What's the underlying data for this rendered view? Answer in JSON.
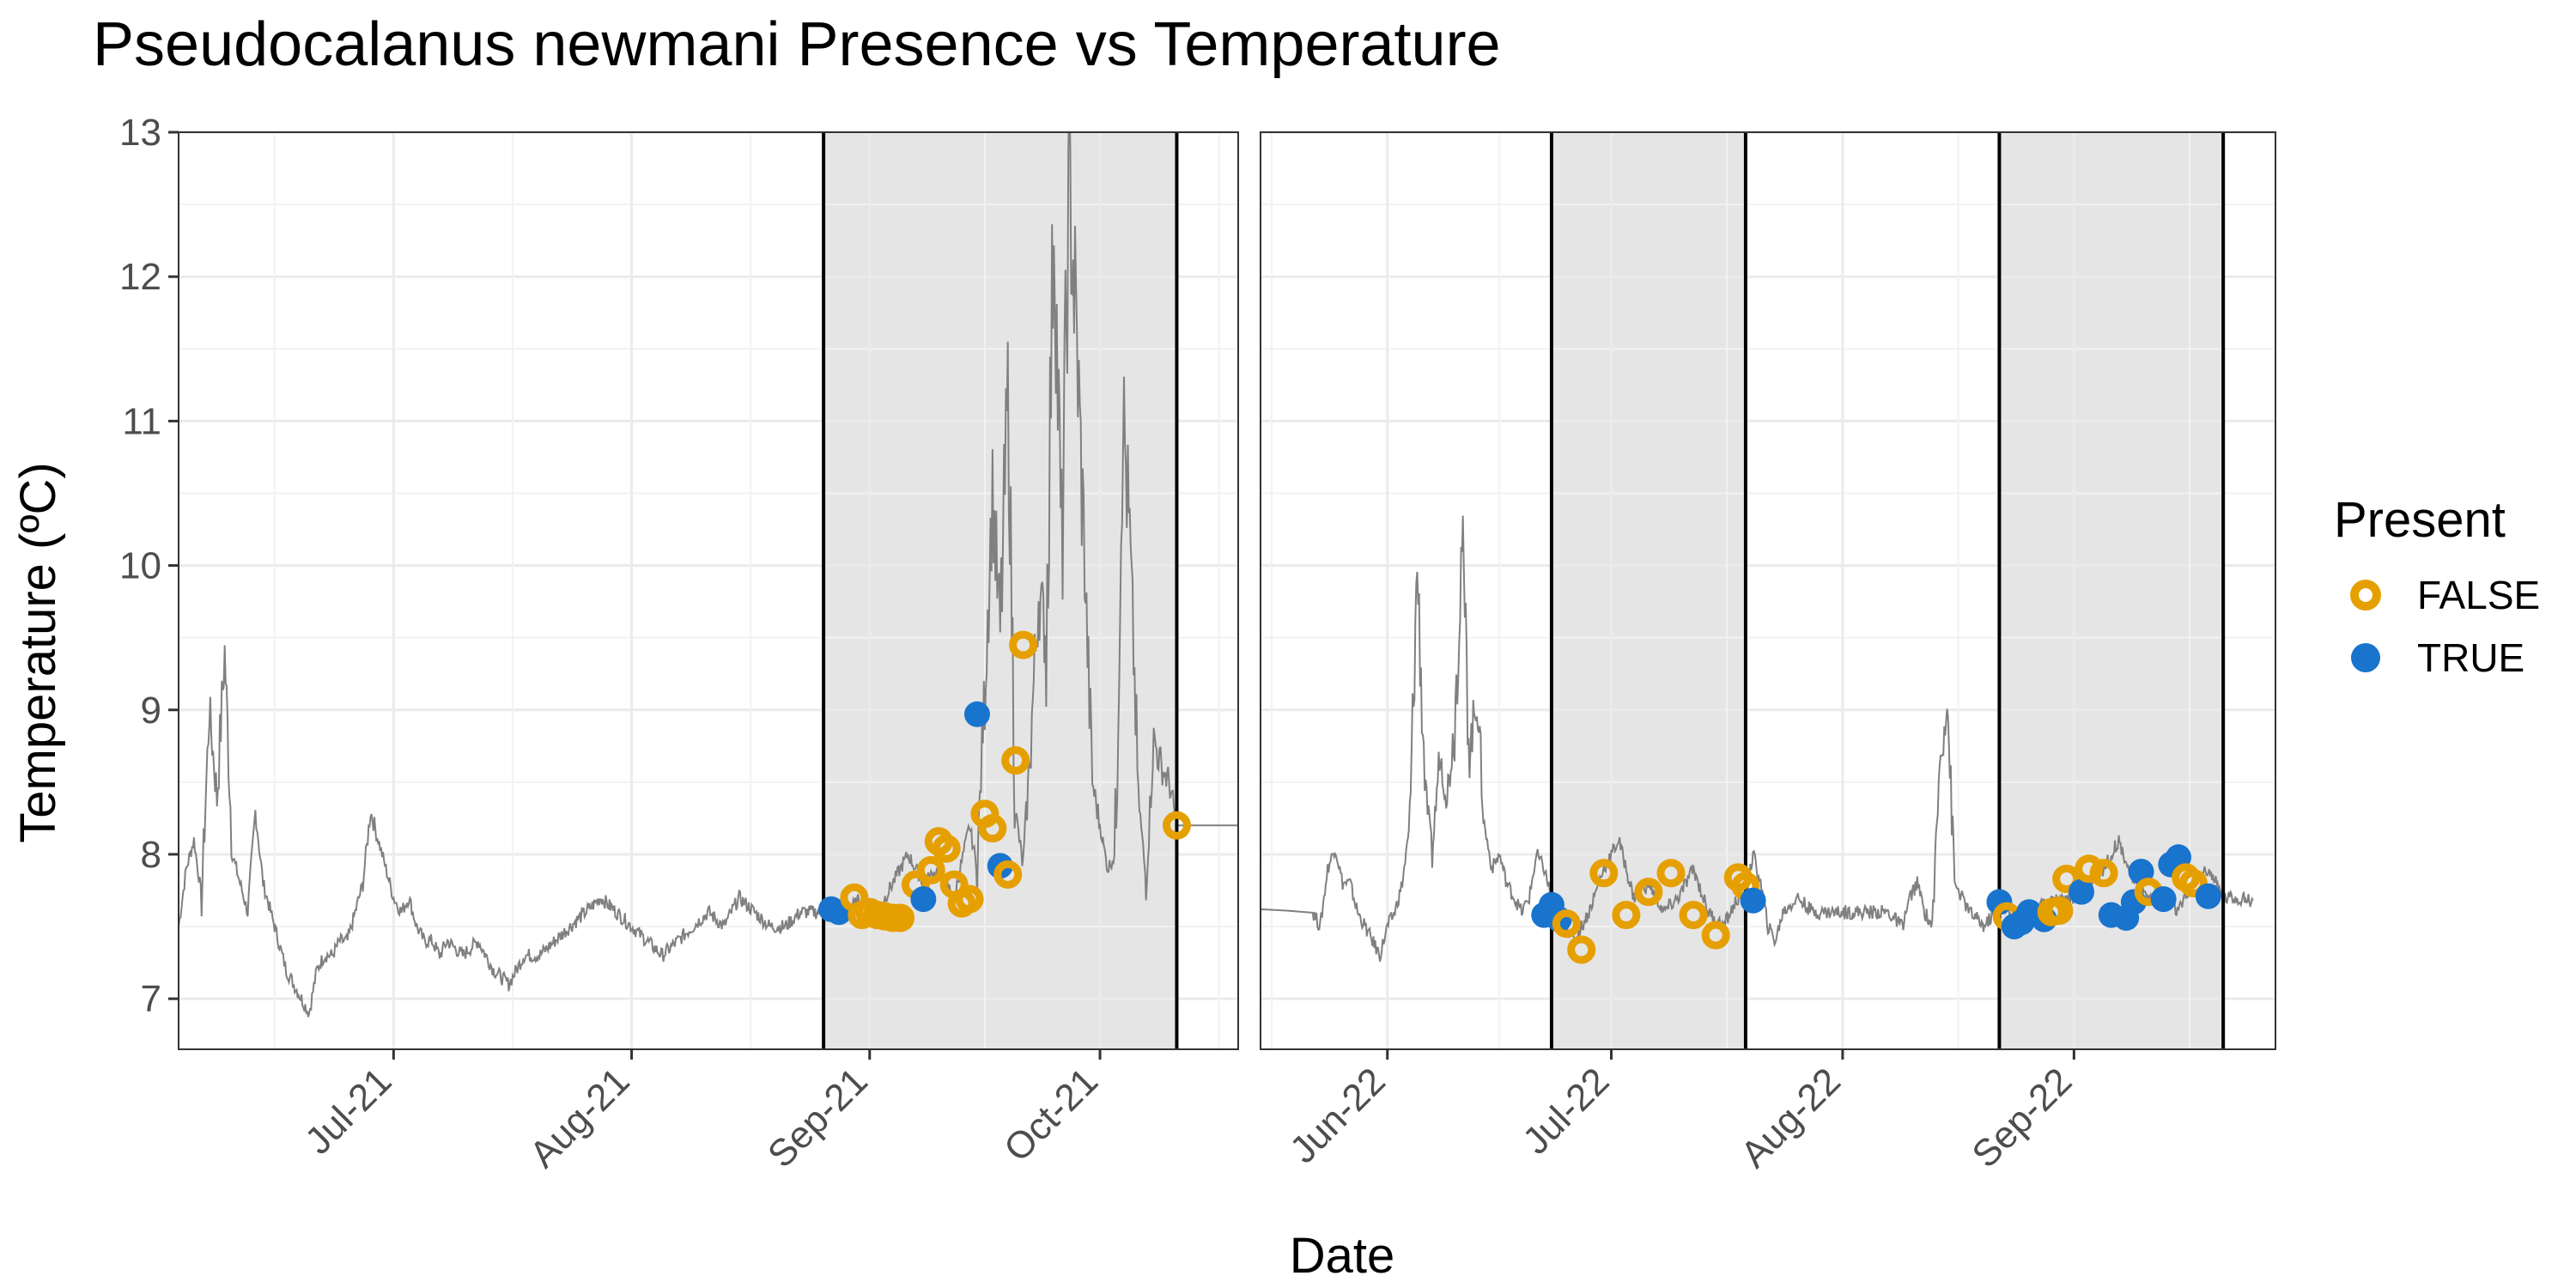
{
  "chart_data": {
    "type": "scatter",
    "title": "Pseudocalanus newmani Presence vs Temperature",
    "xlabel": "Date",
    "ylabel": "Temperature (ºC)",
    "ylim": [
      6.65,
      13.0
    ],
    "y_ticks": [
      7,
      8,
      9,
      10,
      11,
      12,
      13
    ],
    "grid": true,
    "legend": {
      "title": "Present",
      "position": "right",
      "entries": [
        {
          "label": "FALSE",
          "color": "#E69F00",
          "style": "hollow-circle"
        },
        {
          "label": "TRUE",
          "color": "#1874CD",
          "style": "filled-circle"
        }
      ]
    },
    "colors": {
      "false": "#E69F00",
      "true": "#1874CD",
      "temperature_line": "#808080",
      "shade": "#e5e5e5"
    },
    "panels": [
      {
        "xlim": [
          "2021-06-03",
          "2021-10-19"
        ],
        "x_ticks": [
          {
            "date": "2021-07-01",
            "label": "Jul-21"
          },
          {
            "date": "2021-08-01",
            "label": "Aug-21"
          },
          {
            "date": "2021-09-01",
            "label": "Sep-21"
          },
          {
            "date": "2021-10-01",
            "label": "Oct-21"
          }
        ],
        "shaded_periods": [
          [
            "2021-08-26",
            "2021-10-11"
          ]
        ],
        "temperature_series": {
          "name": "",
          "x": [
            "2021-06-03",
            "2021-06-04",
            "2021-06-05",
            "2021-06-06",
            "2021-06-07",
            "2021-06-08",
            "2021-06-09",
            "2021-06-10",
            "2021-06-11",
            "2021-06-12",
            "2021-06-13",
            "2021-06-14",
            "2021-06-15",
            "2021-06-16",
            "2021-06-17",
            "2021-06-18",
            "2021-06-19",
            "2021-06-20",
            "2021-06-21",
            "2021-06-22",
            "2021-06-23",
            "2021-06-24",
            "2021-06-25",
            "2021-06-26",
            "2021-06-27",
            "2021-06-28",
            "2021-06-29",
            "2021-06-30",
            "2021-07-01",
            "2021-07-02",
            "2021-07-03",
            "2021-07-04",
            "2021-07-05",
            "2021-07-06",
            "2021-07-07",
            "2021-07-08",
            "2021-07-10",
            "2021-07-12",
            "2021-07-14",
            "2021-07-16",
            "2021-07-18",
            "2021-07-20",
            "2021-07-22",
            "2021-07-24",
            "2021-07-26",
            "2021-07-28",
            "2021-07-30",
            "2021-08-01",
            "2021-08-03",
            "2021-08-05",
            "2021-08-07",
            "2021-08-09",
            "2021-08-11",
            "2021-08-13",
            "2021-08-15",
            "2021-08-17",
            "2021-08-19",
            "2021-08-21",
            "2021-08-23",
            "2021-08-25",
            "2021-08-27",
            "2021-08-29",
            "2021-08-31",
            "2021-09-02",
            "2021-09-04",
            "2021-09-06",
            "2021-09-08",
            "2021-09-10",
            "2021-09-12",
            "2021-09-14",
            "2021-09-15",
            "2021-09-16",
            "2021-09-17",
            "2021-09-18",
            "2021-09-19",
            "2021-09-20",
            "2021-09-21",
            "2021-09-22",
            "2021-09-23",
            "2021-09-24",
            "2021-09-25",
            "2021-09-26",
            "2021-09-27",
            "2021-09-28",
            "2021-09-29",
            "2021-09-30",
            "2021-10-01",
            "2021-10-02",
            "2021-10-03",
            "2021-10-04",
            "2021-10-05",
            "2021-10-06",
            "2021-10-07",
            "2021-10-08",
            "2021-10-09",
            "2021-10-10",
            "2021-10-11",
            "2021-10-19"
          ],
          "y": [
            7.5,
            7.9,
            8.1,
            7.7,
            9.0,
            8.4,
            9.4,
            8.0,
            7.8,
            7.6,
            8.3,
            7.8,
            7.6,
            7.4,
            7.2,
            7.1,
            7.0,
            6.9,
            7.2,
            7.3,
            7.3,
            7.4,
            7.4,
            7.6,
            7.8,
            8.3,
            8.1,
            7.9,
            7.7,
            7.6,
            7.7,
            7.5,
            7.4,
            7.4,
            7.3,
            7.4,
            7.3,
            7.4,
            7.2,
            7.1,
            7.3,
            7.3,
            7.4,
            7.5,
            7.6,
            7.7,
            7.6,
            7.5,
            7.4,
            7.3,
            7.4,
            7.5,
            7.6,
            7.5,
            7.7,
            7.6,
            7.5,
            7.5,
            7.6,
            7.6,
            7.6,
            7.6,
            7.7,
            7.6,
            7.8,
            8.0,
            7.8,
            7.9,
            7.7,
            8.2,
            7.9,
            9.2,
            10.5,
            9.5,
            11.2,
            8.3,
            7.9,
            8.8,
            9.8,
            9.5,
            12.5,
            10.0,
            12.7,
            11.5,
            10.0,
            8.5,
            8.2,
            7.9,
            8.0,
            11.1,
            10.0,
            8.4,
            7.8,
            8.8,
            8.6,
            8.5,
            8.2,
            8.2
          ]
        },
        "observations": [
          {
            "x": "2021-08-27",
            "y": 7.62,
            "present": true
          },
          {
            "x": "2021-08-28",
            "y": 7.6,
            "present": true
          },
          {
            "x": "2021-08-30",
            "y": 7.7,
            "present": false
          },
          {
            "x": "2021-08-31",
            "y": 7.58,
            "present": false
          },
          {
            "x": "2021-09-01",
            "y": 7.6,
            "present": false
          },
          {
            "x": "2021-09-02",
            "y": 7.58,
            "present": false
          },
          {
            "x": "2021-09-03",
            "y": 7.57,
            "present": false
          },
          {
            "x": "2021-09-04",
            "y": 7.56,
            "present": false
          },
          {
            "x": "2021-09-05",
            "y": 7.56,
            "present": false
          },
          {
            "x": "2021-09-07",
            "y": 7.79,
            "present": false
          },
          {
            "x": "2021-09-08",
            "y": 7.69,
            "present": true
          },
          {
            "x": "2021-09-09",
            "y": 7.89,
            "present": false
          },
          {
            "x": "2021-09-10",
            "y": 8.09,
            "present": false
          },
          {
            "x": "2021-09-11",
            "y": 8.04,
            "present": false
          },
          {
            "x": "2021-09-12",
            "y": 7.79,
            "present": false
          },
          {
            "x": "2021-09-13",
            "y": 7.66,
            "present": false
          },
          {
            "x": "2021-09-14",
            "y": 7.69,
            "present": false
          },
          {
            "x": "2021-09-15",
            "y": 8.97,
            "present": true
          },
          {
            "x": "2021-09-16",
            "y": 8.28,
            "present": false
          },
          {
            "x": "2021-09-17",
            "y": 8.18,
            "present": false
          },
          {
            "x": "2021-09-18",
            "y": 7.92,
            "present": true
          },
          {
            "x": "2021-09-19",
            "y": 7.86,
            "present": false
          },
          {
            "x": "2021-09-20",
            "y": 8.65,
            "present": false
          },
          {
            "x": "2021-09-21",
            "y": 9.45,
            "present": false
          },
          {
            "x": "2021-10-11",
            "y": 8.2,
            "present": false
          }
        ]
      },
      {
        "xlim": [
          "2022-05-15",
          "2022-09-28"
        ],
        "x_ticks": [
          {
            "date": "2022-06-01",
            "label": "Jun-22"
          },
          {
            "date": "2022-07-01",
            "label": "Jul-22"
          },
          {
            "date": "2022-08-01",
            "label": "Aug-22"
          },
          {
            "date": "2022-09-01",
            "label": "Sep-22"
          }
        ],
        "shaded_periods": [
          [
            "2022-06-23",
            "2022-07-19"
          ],
          [
            "2022-08-22",
            "2022-09-21"
          ]
        ],
        "temperature_series": {
          "name": "",
          "x": [
            "2022-05-15",
            "2022-05-22",
            "2022-05-23",
            "2022-05-24",
            "2022-05-25",
            "2022-05-26",
            "2022-05-27",
            "2022-05-28",
            "2022-05-29",
            "2022-05-30",
            "2022-05-31",
            "2022-06-01",
            "2022-06-02",
            "2022-06-03",
            "2022-06-04",
            "2022-06-05",
            "2022-06-06",
            "2022-06-07",
            "2022-06-08",
            "2022-06-09",
            "2022-06-10",
            "2022-06-11",
            "2022-06-12",
            "2022-06-13",
            "2022-06-14",
            "2022-06-15",
            "2022-06-16",
            "2022-06-17",
            "2022-06-18",
            "2022-06-19",
            "2022-06-20",
            "2022-06-21",
            "2022-06-22",
            "2022-06-23",
            "2022-06-24",
            "2022-06-26",
            "2022-06-28",
            "2022-06-30",
            "2022-07-02",
            "2022-07-04",
            "2022-07-06",
            "2022-07-08",
            "2022-07-10",
            "2022-07-12",
            "2022-07-14",
            "2022-07-16",
            "2022-07-18",
            "2022-07-19",
            "2022-07-20",
            "2022-07-21",
            "2022-07-22",
            "2022-07-23",
            "2022-07-24",
            "2022-07-26",
            "2022-07-28",
            "2022-07-30",
            "2022-08-01",
            "2022-08-03",
            "2022-08-05",
            "2022-08-07",
            "2022-08-09",
            "2022-08-10",
            "2022-08-11",
            "2022-08-12",
            "2022-08-13",
            "2022-08-14",
            "2022-08-15",
            "2022-08-16",
            "2022-08-18",
            "2022-08-20",
            "2022-08-22",
            "2022-08-24",
            "2022-08-26",
            "2022-08-28",
            "2022-08-30",
            "2022-09-01",
            "2022-09-03",
            "2022-09-05",
            "2022-09-07",
            "2022-09-09",
            "2022-09-11",
            "2022-09-13",
            "2022-09-15",
            "2022-09-17",
            "2022-09-19",
            "2022-09-21",
            "2022-09-23",
            "2022-09-25"
          ],
          "y": [
            7.62,
            7.6,
            7.5,
            7.9,
            8.05,
            7.8,
            7.8,
            7.6,
            7.5,
            7.4,
            7.3,
            7.5,
            7.6,
            7.8,
            8.2,
            10.0,
            8.5,
            8.0,
            8.7,
            8.4,
            8.9,
            10.2,
            8.7,
            9.1,
            8.2,
            7.9,
            8.0,
            7.8,
            7.7,
            7.6,
            7.7,
            8.0,
            7.9,
            7.7,
            7.6,
            7.4,
            7.6,
            7.9,
            8.1,
            7.7,
            7.8,
            7.6,
            7.7,
            7.9,
            7.6,
            7.5,
            7.7,
            7.7,
            8.0,
            7.8,
            7.5,
            7.4,
            7.6,
            7.7,
            7.6,
            7.6,
            7.6,
            7.6,
            7.6,
            7.6,
            7.5,
            7.7,
            7.8,
            7.6,
            7.5,
            8.6,
            9.1,
            7.8,
            7.6,
            7.5,
            7.65,
            7.55,
            7.6,
            7.65,
            7.7,
            7.7,
            7.8,
            7.9,
            8.1,
            7.8,
            7.7,
            7.7,
            7.6,
            7.8,
            7.9,
            7.7,
            7.7,
            7.68
          ]
        },
        "observations": [
          {
            "x": "2022-06-22",
            "y": 7.58,
            "present": true
          },
          {
            "x": "2022-06-23",
            "y": 7.65,
            "present": true
          },
          {
            "x": "2022-06-24",
            "y": 7.55,
            "present": true
          },
          {
            "x": "2022-06-25",
            "y": 7.52,
            "present": false
          },
          {
            "x": "2022-06-27",
            "y": 7.34,
            "present": false
          },
          {
            "x": "2022-06-30",
            "y": 7.87,
            "present": false
          },
          {
            "x": "2022-07-03",
            "y": 7.58,
            "present": false
          },
          {
            "x": "2022-07-06",
            "y": 7.74,
            "present": false
          },
          {
            "x": "2022-07-09",
            "y": 7.87,
            "present": false
          },
          {
            "x": "2022-07-12",
            "y": 7.58,
            "present": false
          },
          {
            "x": "2022-07-15",
            "y": 7.44,
            "present": false
          },
          {
            "x": "2022-07-18",
            "y": 7.84,
            "present": false
          },
          {
            "x": "2022-07-19",
            "y": 7.78,
            "present": false
          },
          {
            "x": "2022-07-20",
            "y": 7.68,
            "present": true
          },
          {
            "x": "2022-08-22",
            "y": 7.67,
            "present": true
          },
          {
            "x": "2022-08-23",
            "y": 7.57,
            "present": false
          },
          {
            "x": "2022-08-24",
            "y": 7.5,
            "present": true
          },
          {
            "x": "2022-08-25",
            "y": 7.53,
            "present": true
          },
          {
            "x": "2022-08-26",
            "y": 7.6,
            "present": true
          },
          {
            "x": "2022-08-28",
            "y": 7.55,
            "present": true
          },
          {
            "x": "2022-08-29",
            "y": 7.6,
            "present": false
          },
          {
            "x": "2022-08-30",
            "y": 7.61,
            "present": false
          },
          {
            "x": "2022-08-31",
            "y": 7.83,
            "present": false
          },
          {
            "x": "2022-09-02",
            "y": 7.74,
            "present": true
          },
          {
            "x": "2022-09-03",
            "y": 7.9,
            "present": false
          },
          {
            "x": "2022-09-05",
            "y": 7.87,
            "present": false
          },
          {
            "x": "2022-09-06",
            "y": 7.58,
            "present": true
          },
          {
            "x": "2022-09-08",
            "y": 7.56,
            "present": true
          },
          {
            "x": "2022-09-09",
            "y": 7.67,
            "present": true
          },
          {
            "x": "2022-09-10",
            "y": 7.88,
            "present": true
          },
          {
            "x": "2022-09-11",
            "y": 7.74,
            "present": false
          },
          {
            "x": "2022-09-13",
            "y": 7.69,
            "present": true
          },
          {
            "x": "2022-09-14",
            "y": 7.93,
            "present": true
          },
          {
            "x": "2022-09-15",
            "y": 7.98,
            "present": true
          },
          {
            "x": "2022-09-16",
            "y": 7.84,
            "present": false
          },
          {
            "x": "2022-09-17",
            "y": 7.8,
            "present": false
          },
          {
            "x": "2022-09-19",
            "y": 7.71,
            "present": true
          }
        ]
      }
    ]
  }
}
